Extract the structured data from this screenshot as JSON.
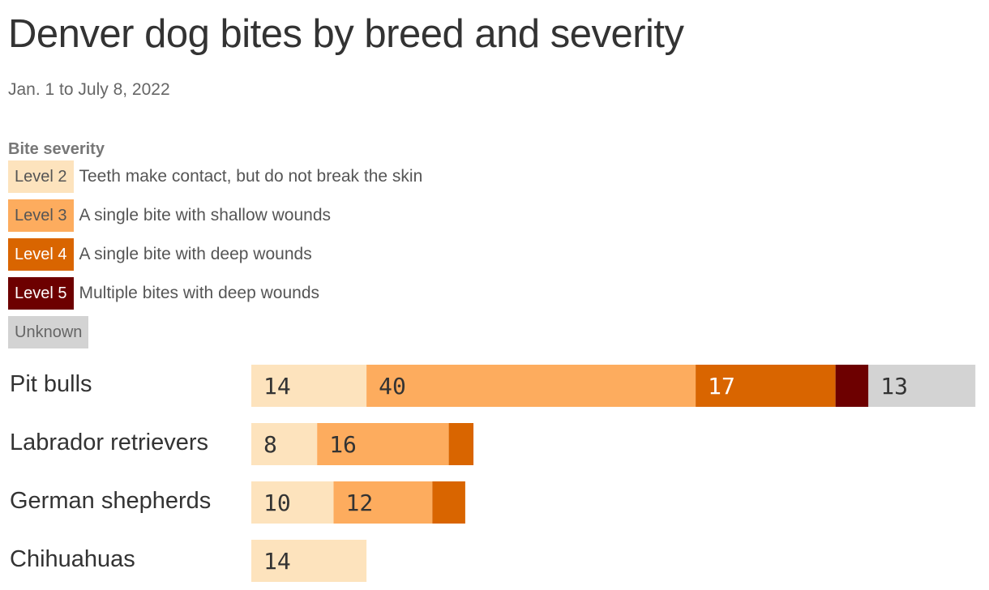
{
  "title": "Denver dog bites by breed and severity",
  "subtitle": "Jan. 1 to July 8, 2022",
  "legend": {
    "title": "Bite severity",
    "items": [
      {
        "label": "Level 2",
        "description": "Teeth make contact, but do not break the skin",
        "color": "#fde3bd",
        "text_color": "#555555"
      },
      {
        "label": "Level 3",
        "description": "A single bite with shallow wounds",
        "color": "#fdac5e",
        "text_color": "#555555"
      },
      {
        "label": "Level 4",
        "description": "A single bite with deep wounds",
        "color": "#d96500",
        "text_color": "#ffffff"
      },
      {
        "label": "Level 5",
        "description": "Multiple bites with deep wounds",
        "color": "#6d0000",
        "text_color": "#ffffff"
      },
      {
        "label": "Unknown",
        "description": "",
        "color": "#d3d3d3",
        "text_color": "#666666"
      }
    ]
  },
  "chart_data": {
    "type": "bar",
    "orientation": "horizontal",
    "stacked": true,
    "title": "Denver dog bites by breed and severity",
    "subtitle": "Jan. 1 to July 8, 2022",
    "categories": [
      "Pit bulls",
      "Labrador retrievers",
      "German shepherds",
      "Chihuahuas"
    ],
    "series": [
      {
        "name": "Level 2",
        "color": "#fde3bd",
        "label_color": "#333333",
        "values": [
          14,
          8,
          10,
          14
        ]
      },
      {
        "name": "Level 3",
        "color": "#fdac5e",
        "label_color": "#333333",
        "values": [
          40,
          16,
          12,
          0
        ]
      },
      {
        "name": "Level 4",
        "color": "#d96500",
        "label_color": "#ffffff",
        "values": [
          17,
          3,
          4,
          0
        ]
      },
      {
        "name": "Level 5",
        "color": "#6d0000",
        "label_color": "#ffffff",
        "values": [
          4,
          0,
          0,
          0
        ]
      },
      {
        "name": "Unknown",
        "color": "#d3d3d3",
        "label_color": "#333333",
        "values": [
          13,
          0,
          0,
          0
        ]
      }
    ],
    "show_value_label_min": 5,
    "grid": false,
    "legend_position": "top-left"
  }
}
